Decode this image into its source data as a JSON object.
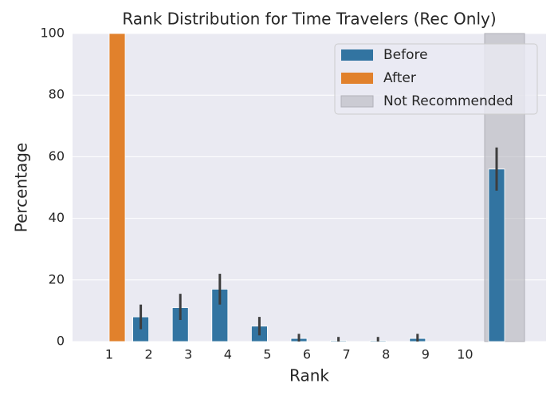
{
  "chart_data": {
    "type": "bar",
    "title": "Rank Distribution for Time Travelers (Rec Only)",
    "x_label": "Rank",
    "y_label": "Percentage",
    "categories": [
      "1",
      "2",
      "3",
      "4",
      "5",
      "6",
      "7",
      "8",
      "9",
      "10",
      null
    ],
    "series": [
      {
        "name": "Before",
        "color": "#3274a1",
        "values": [
          0,
          8,
          11,
          17,
          5,
          1,
          0.3,
          0.3,
          1,
          0,
          56
        ],
        "ci_low": [
          0,
          4,
          7,
          12,
          2,
          0,
          0,
          0,
          0,
          0,
          49
        ],
        "ci_high": [
          0,
          12,
          15.5,
          22,
          8,
          2.5,
          1.5,
          1.5,
          2.5,
          0,
          63
        ]
      },
      {
        "name": "After",
        "color": "#e1812c",
        "values": [
          100,
          0,
          0,
          0,
          0,
          0,
          0,
          0,
          0,
          0,
          0
        ]
      }
    ],
    "shade": {
      "name": "Not Recommended",
      "color": "#b0b0b8"
    },
    "ylim": [
      0,
      100
    ],
    "yticks": [
      0,
      20,
      40,
      60,
      80,
      100
    ],
    "grid": true,
    "legend": "upper right"
  }
}
